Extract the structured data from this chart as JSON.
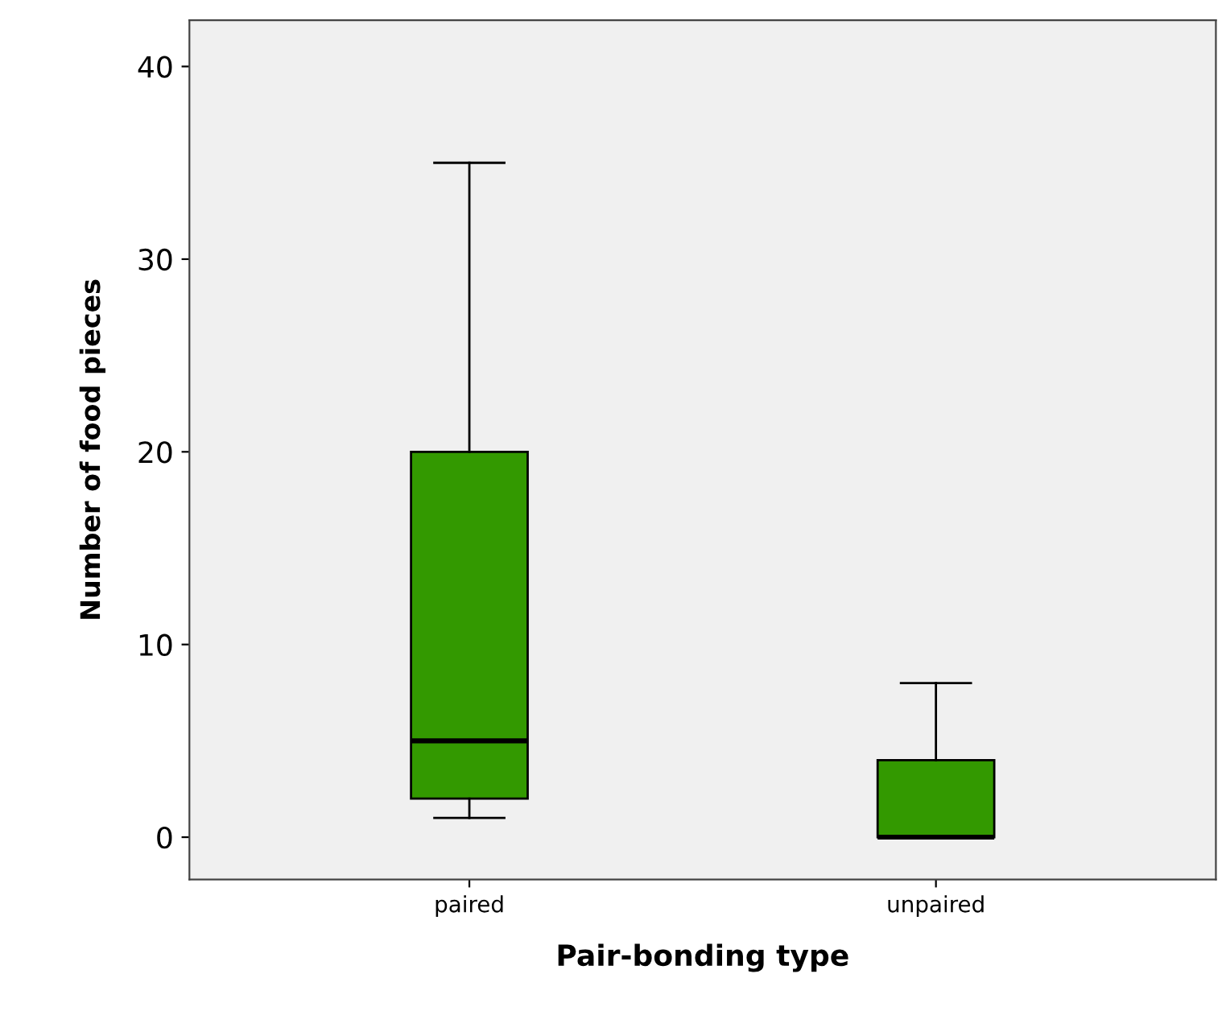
{
  "chart_data": {
    "type": "box",
    "xlabel": "Pair-bonding type",
    "ylabel": "Number of food pieces",
    "categories": [
      "paired",
      "unpaired"
    ],
    "boxes": [
      {
        "low": 1,
        "q1": 2,
        "median": 5,
        "q3": 20,
        "high": 35
      },
      {
        "low": 0,
        "q1": 0,
        "median": 0,
        "q3": 4,
        "high": 8
      }
    ],
    "color": "#339900",
    "ylim": [
      -2.2,
      42.4
    ],
    "yticks": [
      0,
      10,
      20,
      30,
      40
    ],
    "grid": false
  }
}
